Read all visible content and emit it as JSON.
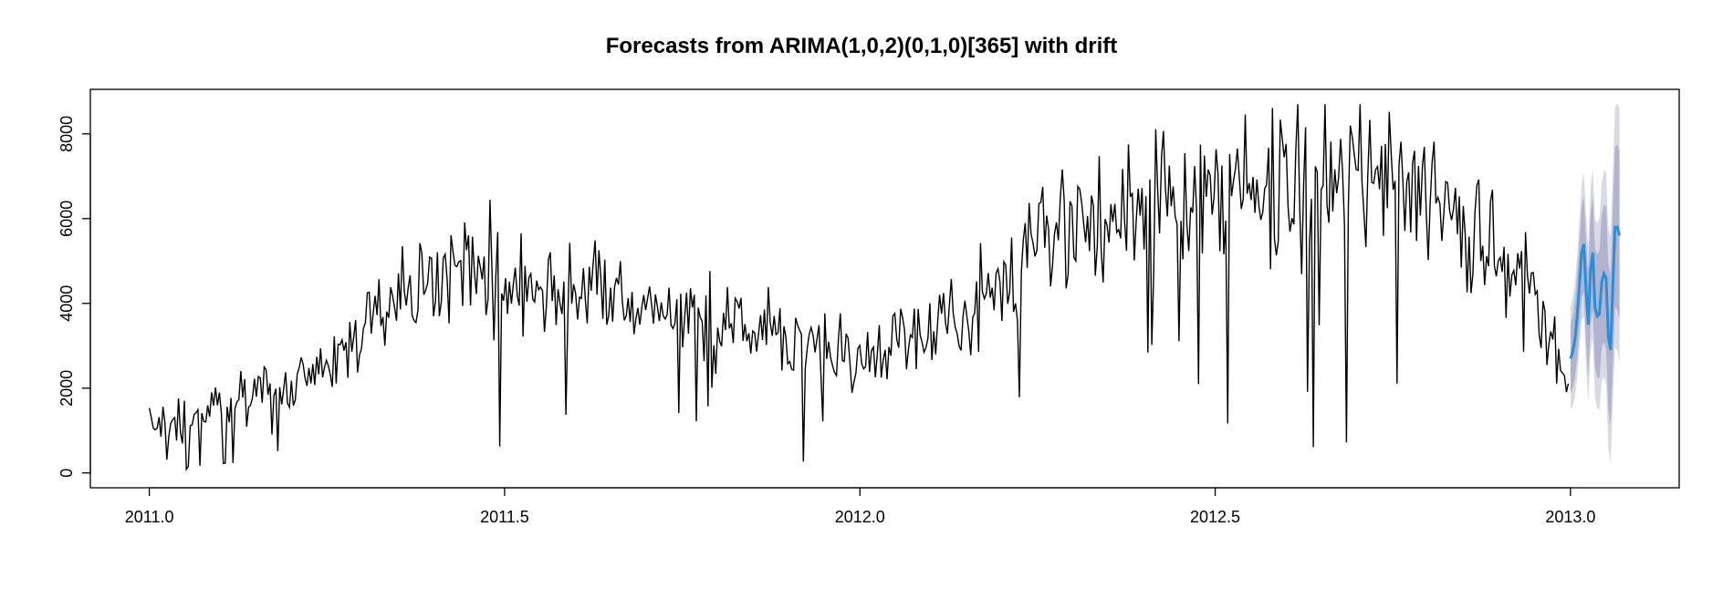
{
  "chart_data": {
    "type": "line",
    "title": "Forecasts from ARIMA(1,0,2)(0,1,0)[365] with drift",
    "xlabel": "",
    "ylabel": "",
    "xlim": [
      2010.917,
      2013.153
    ],
    "ylim": [
      -350,
      9050
    ],
    "x_ticks": [
      "2011.0",
      "2011.5",
      "2012.0",
      "2012.5",
      "2013.0"
    ],
    "y_ticks": [
      "0",
      "2000",
      "4000",
      "6000",
      "8000"
    ],
    "grid": false,
    "legend": "none",
    "colors": {
      "history": "#000000",
      "forecast": "#2a8fd8",
      "band80": "#b1b3d1",
      "band95": "#d9dae4"
    },
    "history_start": 2011.0,
    "history_end": 2012.997,
    "forecast_start": 2013.0,
    "forecast_end": 2013.069,
    "forecast_mean": [
      2700,
      2850,
      3150,
      3700,
      4400,
      5200,
      5400,
      4300,
      3500,
      4800,
      5200,
      3900,
      3700,
      3750,
      4500,
      4700,
      4600,
      3200,
      2900,
      4400,
      5800,
      5800,
      5600
    ]
  }
}
